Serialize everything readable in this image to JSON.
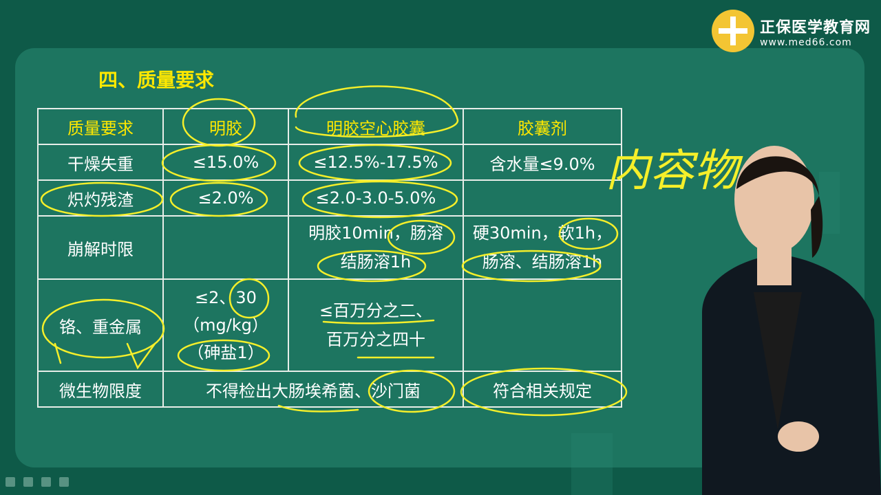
{
  "brand": {
    "name": "正保医学教育网",
    "url": "www.med66.com"
  },
  "section_title": "四、质量要求",
  "table": {
    "headers": [
      "质量要求",
      "明胶",
      "明胶空心胶囊",
      "胶囊剂"
    ],
    "rows": [
      [
        "干燥失重",
        "≤15.0%",
        "≤12.5%-17.5%",
        "含水量≤9.0%"
      ],
      [
        "炽灼残渣",
        "≤2.0%",
        "≤2.0-3.0-5.0%",
        ""
      ],
      [
        "崩解时限",
        "",
        "明胶10min，肠溶\n结肠溶1h",
        "硬30min，软1h，\n肠溶、结肠溶1h"
      ],
      [
        "铬、重金属",
        "≤2、30\n（mg/kg）\n（砷盐1）",
        "≤百万分之二、\n百万分之四十",
        ""
      ]
    ],
    "last_row": {
      "label": "微生物限度",
      "merged": "不得检出大肠埃希菌、沙门菌",
      "value": "符合相关规定"
    }
  },
  "handwriting": "内容物",
  "colors": {
    "board": "#1d7560",
    "background": "#0e5a48",
    "header_text": "#ffe800",
    "ink": "#f5ef2a",
    "logo": "#f3c533"
  }
}
